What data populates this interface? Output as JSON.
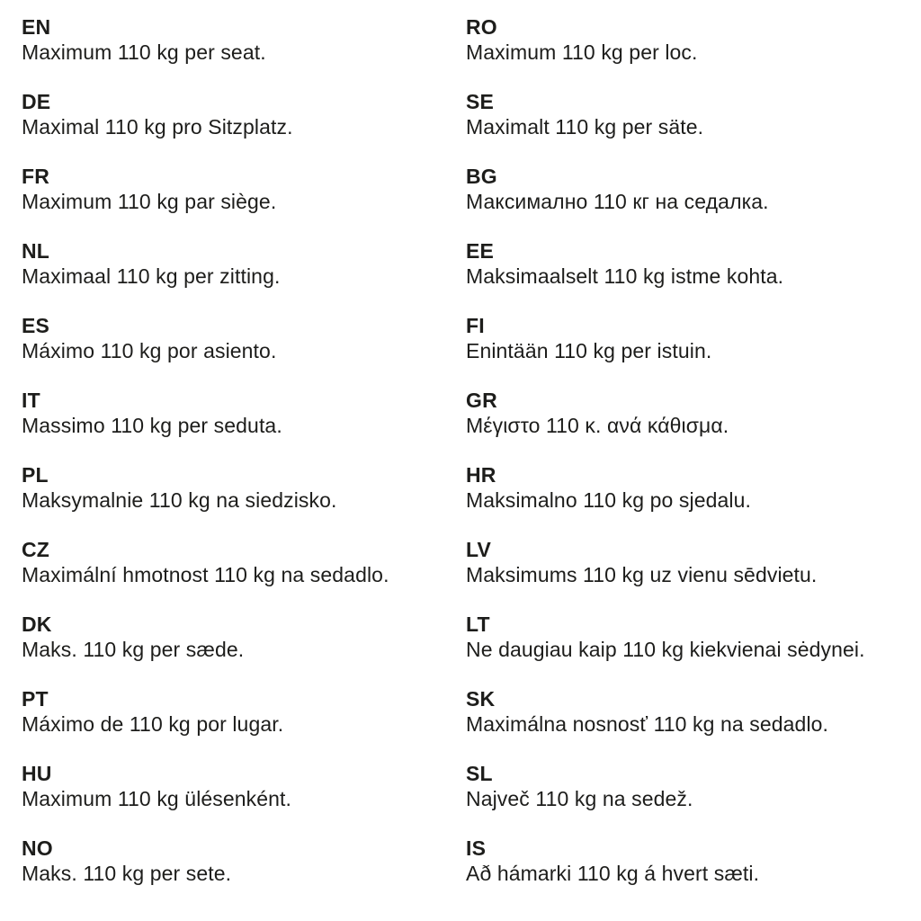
{
  "page": {
    "background_color": "#ffffff",
    "text_color": "#1d1d1b",
    "description": "Multilingual seat weight limit notice"
  },
  "columns": [
    {
      "entries": [
        {
          "code": "EN",
          "text": "Maximum 110 kg per seat."
        },
        {
          "code": "DE",
          "text": "Maximal 110 kg pro Sitzplatz."
        },
        {
          "code": "FR",
          "text": "Maximum 110 kg par siège."
        },
        {
          "code": "NL",
          "text": "Maximaal 110 kg per zitting."
        },
        {
          "code": "ES",
          "text": "Máximo 110 kg por asiento."
        },
        {
          "code": "IT",
          "text": "Massimo 110 kg per seduta."
        },
        {
          "code": "PL",
          "text": "Maksymalnie 110 kg na siedzisko."
        },
        {
          "code": "CZ",
          "text": "Maximální hmotnost 110 kg na sedadlo."
        },
        {
          "code": "DK",
          "text": "Maks. 110 kg per sæde."
        },
        {
          "code": "PT",
          "text": "Máximo de 110 kg por lugar."
        },
        {
          "code": "HU",
          "text": "Maximum 110 kg ülésenként."
        },
        {
          "code": "NO",
          "text": "Maks. 110 kg per sete."
        }
      ]
    },
    {
      "entries": [
        {
          "code": "RO",
          "text": "Maximum 110 kg per loc."
        },
        {
          "code": "SE",
          "text": "Maximalt 110 kg per säte."
        },
        {
          "code": "BG",
          "text": "Максимално 110 кг на седалка."
        },
        {
          "code": "EE",
          "text": "Maksimaalselt 110 kg istme kohta."
        },
        {
          "code": "FI",
          "text": "Enintään 110 kg per istuin."
        },
        {
          "code": "GR",
          "text": "Μέγιστο 110 κ. ανά κάθισμα."
        },
        {
          "code": "HR",
          "text": "Maksimalno 110 kg po sjedalu."
        },
        {
          "code": "LV",
          "text": "Maksimums 110 kg uz vienu sēdvietu."
        },
        {
          "code": "LT",
          "text": "Ne daugiau kaip 110 kg kiekvienai sėdynei."
        },
        {
          "code": "SK",
          "text": "Maximálna nosnosť 110 kg na sedadlo."
        },
        {
          "code": "SL",
          "text": "Največ 110 kg na sedež."
        },
        {
          "code": "IS",
          "text": "Að hámarki 110 kg á hvert sæti."
        }
      ]
    }
  ]
}
